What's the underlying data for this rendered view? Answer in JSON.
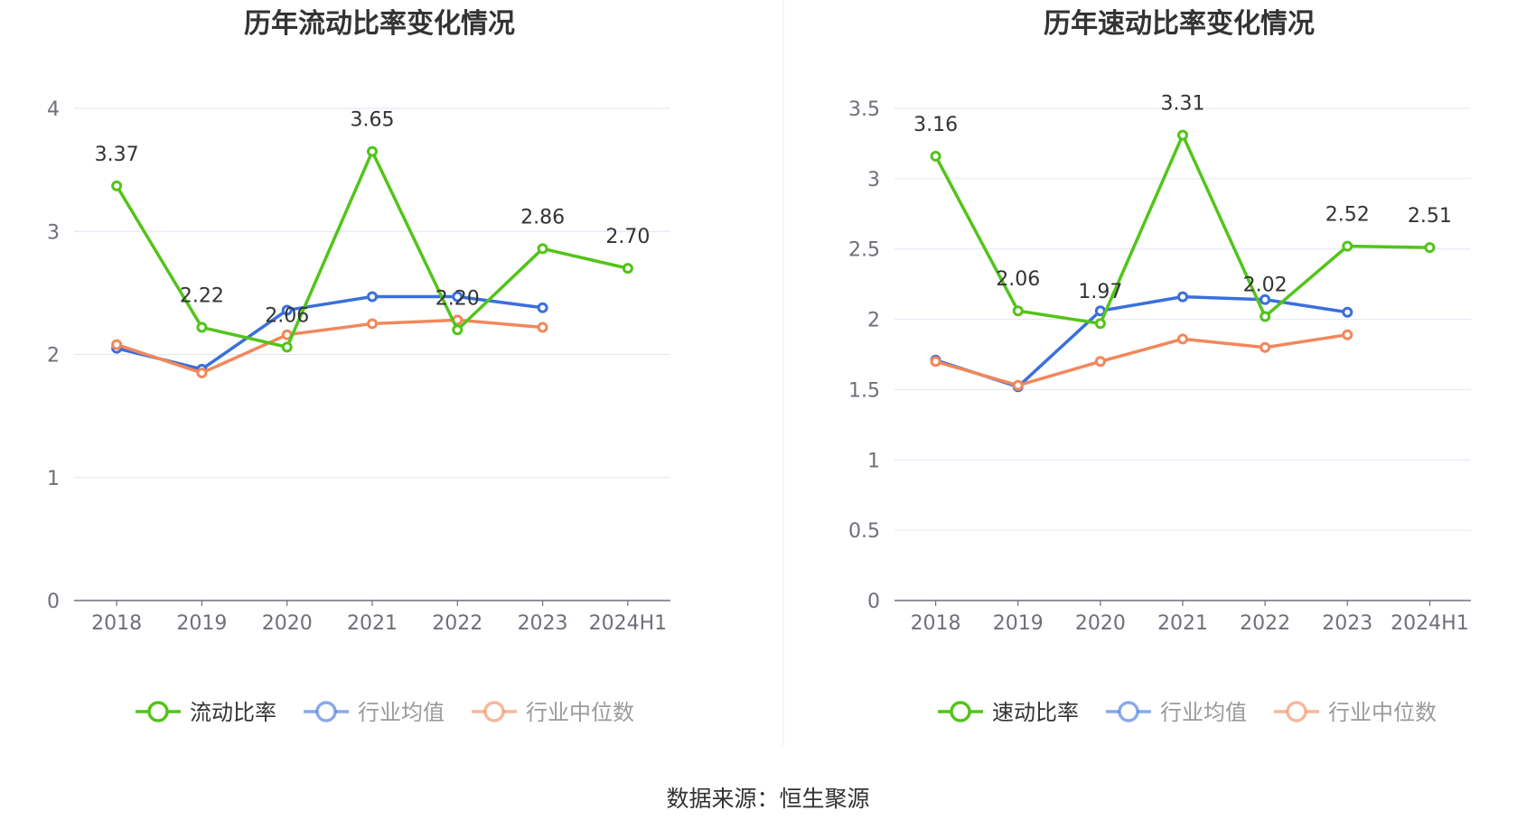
{
  "source": "数据来源：恒生聚源",
  "colors": {
    "main": "#52c41a",
    "avg": "#3a6fdc",
    "median": "#f2875a",
    "grid": "#e0e6f1",
    "axis": "#6e7079"
  },
  "legend_labels": [
    "行业均值",
    "行业中位数"
  ],
  "chart_data": [
    {
      "type": "line",
      "title": "历年流动比率变化情况",
      "categories": [
        "2018",
        "2019",
        "2020",
        "2021",
        "2022",
        "2023",
        "2024H1"
      ],
      "y_ticks": [
        "0",
        "1",
        "2",
        "3",
        "4"
      ],
      "ylim": [
        0,
        4
      ],
      "grid": true,
      "legend_position": "bottom",
      "series": [
        {
          "name": "流动比率",
          "key": "main",
          "values": [
            3.37,
            2.22,
            2.06,
            3.65,
            2.2,
            2.86,
            2.7
          ],
          "labels": [
            "3.37",
            "2.22",
            "2.06",
            "3.65",
            "2.20",
            "2.86",
            "2.70"
          ]
        },
        {
          "name": "行业均值",
          "key": "avg",
          "values": [
            2.05,
            1.88,
            2.36,
            2.47,
            2.47,
            2.38,
            null
          ]
        },
        {
          "name": "行业中位数",
          "key": "median",
          "values": [
            2.08,
            1.85,
            2.16,
            2.25,
            2.28,
            2.22,
            null
          ]
        }
      ]
    },
    {
      "type": "line",
      "title": "历年速动比率变化情况",
      "categories": [
        "2018",
        "2019",
        "2020",
        "2021",
        "2022",
        "2023",
        "2024H1"
      ],
      "y_ticks": [
        "0",
        "0.5",
        "1",
        "1.5",
        "2",
        "2.5",
        "3",
        "3.5"
      ],
      "ylim": [
        0,
        3.5
      ],
      "grid": true,
      "legend_position": "bottom",
      "series": [
        {
          "name": "速动比率",
          "key": "main",
          "values": [
            3.16,
            2.06,
            1.97,
            3.31,
            2.02,
            2.52,
            2.51
          ],
          "labels": [
            "3.16",
            "2.06",
            "1.97",
            "3.31",
            "2.02",
            "2.52",
            "2.51"
          ]
        },
        {
          "name": "行业均值",
          "key": "avg",
          "values": [
            1.71,
            1.52,
            2.06,
            2.16,
            2.14,
            2.05,
            null
          ]
        },
        {
          "name": "行业中位数",
          "key": "median",
          "values": [
            1.7,
            1.53,
            1.7,
            1.86,
            1.8,
            1.89,
            null
          ]
        }
      ]
    }
  ]
}
